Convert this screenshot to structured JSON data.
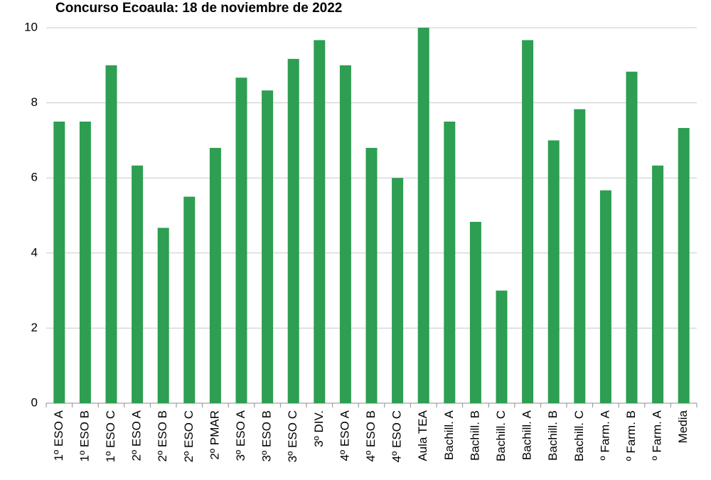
{
  "chart_data": {
    "type": "bar",
    "title": "Concurso Ecoaula: 18 de noviembre de 2022",
    "categories": [
      "1º ESO A",
      "1º ESO B",
      "1º ESO C",
      "2º ESO A",
      "2º ESO B",
      "2º ESO C",
      "2º PMAR",
      "3º ESO A",
      "3º ESO B",
      "3º ESO C",
      "3º DIV.",
      "4º ESO A",
      "4º ESO B",
      "4º ESO C",
      "Aula TEA",
      "Bachill. A",
      "Bachill. B",
      "Bachill. C",
      "Bachill. A",
      "Bachill. B",
      "Bachill. C",
      "º Farm. A",
      "º Farm. B",
      "º Farm. A",
      "Media"
    ],
    "values": [
      7.5,
      7.5,
      9.0,
      6.33,
      4.67,
      5.5,
      6.8,
      8.67,
      8.33,
      9.17,
      9.67,
      9.0,
      6.8,
      6.0,
      10,
      7.5,
      4.83,
      3.0,
      9.67,
      7.0,
      7.83,
      5.67,
      8.83,
      6.33,
      7.33
    ],
    "color": "#2e9e52",
    "ylim": [
      0,
      10
    ],
    "yticks": [
      0,
      2,
      4,
      6,
      8,
      10
    ],
    "grid": true
  }
}
